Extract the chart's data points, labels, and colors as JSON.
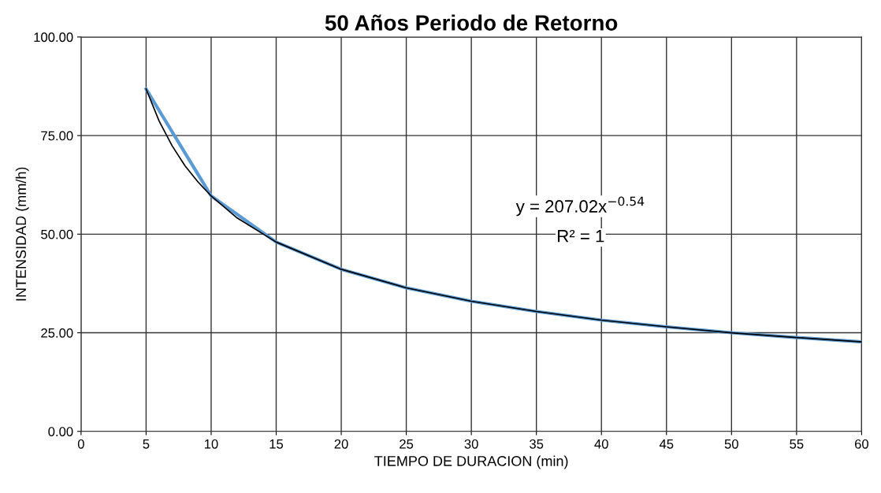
{
  "chart_data": {
    "type": "line",
    "title": "50 Años Periodo de Retorno",
    "xlabel": "TIEMPO DE DURACION (min)",
    "ylabel": "INTENSIDAD (mm/h)",
    "series": [
      {
        "color": "#5b9bd5",
        "x": [
          5,
          10,
          15,
          20,
          25,
          30,
          35,
          40,
          45,
          50,
          55,
          60
        ],
        "values": [
          86.8,
          59.7,
          48.0,
          41.1,
          36.4,
          33.0,
          30.4,
          28.2,
          26.5,
          25.0,
          23.8,
          22.7
        ]
      },
      {
        "color": "#000000",
        "x": [
          5,
          6,
          7,
          8,
          9,
          10,
          12,
          15,
          20,
          25,
          30,
          35,
          40,
          45,
          50,
          55,
          60
        ],
        "values": [
          86.8,
          78.7,
          72.4,
          67.3,
          63.2,
          59.7,
          54.1,
          48.0,
          41.1,
          36.4,
          33.0,
          30.4,
          28.2,
          26.5,
          25.0,
          23.8,
          22.7
        ]
      }
    ],
    "annotations": [
      "y = 207.02x$^{−0.54}$",
      "R² = 1"
    ],
    "xlim": [
      0,
      60
    ],
    "xticks": [
      0,
      5,
      10,
      15,
      20,
      25,
      30,
      35,
      40,
      45,
      50,
      55,
      60
    ],
    "ylim": [
      0,
      100
    ],
    "yticks": [
      {
        "value": 0,
        "label": "0.00"
      },
      {
        "value": 25,
        "label": "25.00"
      },
      {
        "value": 50,
        "label": "50.00"
      },
      {
        "value": 75,
        "label": "75.00"
      },
      {
        "value": 100,
        "label": "100.00"
      }
    ],
    "grid": true,
    "marker": "none",
    "line_style": "solid"
  }
}
